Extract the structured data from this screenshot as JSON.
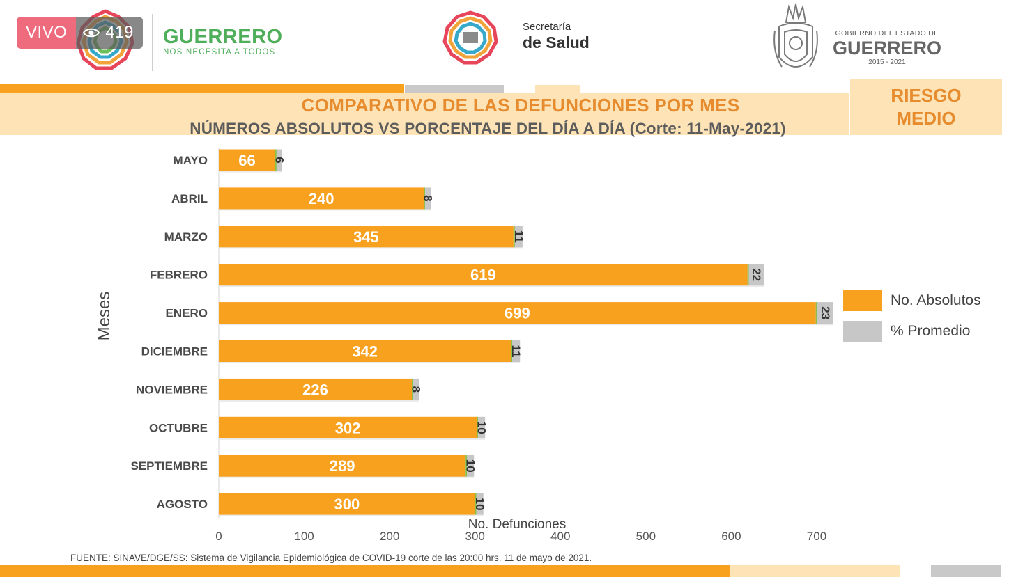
{
  "live": {
    "label": "VIVO",
    "viewers": "419"
  },
  "header": {
    "left_brand": {
      "name": "GUERRERO",
      "tagline": "NOS NECESITA A TODOS"
    },
    "mid_brand": {
      "line1": "Secretaría",
      "line2": "de Salud"
    },
    "right_brand": {
      "line1": "GOBIERNO DEL ESTADO DE",
      "line2": "GUERRERO",
      "line3": "2015 - 2021"
    },
    "risk_line1": "RIESGO",
    "risk_line2": "MEDIO"
  },
  "colors": {
    "orange": "#f8a11f",
    "gray": "#c7c7c7",
    "peach": "#fde3b6",
    "title_orange": "#e68c2e",
    "green": "#4eae5a"
  },
  "icons": [
    "eye-icon",
    "guerrero-star-logo",
    "salud-star-logo",
    "state-crest"
  ],
  "chart_data": {
    "type": "bar",
    "orientation": "horizontal",
    "stacked": true,
    "title": "COMPARATIVO DE LAS DEFUNCIONES POR MES",
    "subtitle": "NÚMEROS ABSOLUTOS VS PORCENTAJE DEL DÍA A DÍA   (Corte: 11-May-2021)",
    "xlabel": "No. Defunciones",
    "ylabel": "Meses",
    "xlim": [
      0,
      700
    ],
    "xticks": [
      0,
      100,
      200,
      300,
      400,
      500,
      600,
      700
    ],
    "categories": [
      "MAYO",
      "ABRIL",
      "MARZO",
      "FEBRERO",
      "ENERO",
      "DICIEMBRE",
      "NOVIEMBRE",
      "OCTUBRE",
      "SEPTIEMBRE",
      "AGOSTO"
    ],
    "series": [
      {
        "name": "No. Absolutos",
        "values": [
          66,
          240,
          345,
          619,
          699,
          342,
          226,
          302,
          289,
          300
        ]
      },
      {
        "name": "% Promedio",
        "values": [
          6,
          8,
          11,
          22,
          23,
          11,
          8,
          10,
          10,
          10
        ]
      }
    ],
    "legend_position": "right",
    "grid": false
  },
  "source": "FUENTE: SINAVE/DGE/SS: Sistema de Vigilancia Epidemiológica de COVID-19 corte de las 20:00 hrs. 11 de mayo  de 2021."
}
